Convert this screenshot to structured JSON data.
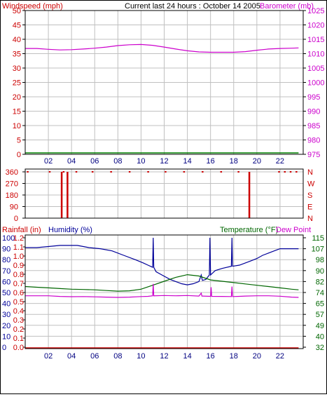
{
  "header": {
    "left_label": "Windspeed (mph)",
    "center_label": "Current last 24 hours : October 14 2005",
    "right_label": "Barometer (mb)"
  },
  "colors": {
    "windspeed": "#cc0000",
    "barometer": "#cc00cc",
    "wind_line": "#008000",
    "direction": "#cc0000",
    "rainfall": "#cc0000",
    "humidity": "#000099",
    "temperature": "#006600",
    "dewpoint": "#cc00cc",
    "grid": "#c0c0c0",
    "black_tick": "#000000"
  },
  "chart_data": [
    {
      "type": "line",
      "x_ticks": [
        "02",
        "04",
        "06",
        "08",
        "10",
        "12",
        "14",
        "16",
        "18",
        "20",
        "22"
      ],
      "xlim": [
        0,
        24
      ],
      "left_axis": {
        "label": "Windspeed (mph)",
        "ticks": [
          0,
          5,
          10,
          15,
          20,
          25,
          30,
          35,
          40,
          45,
          50
        ],
        "ylim": [
          0,
          50
        ]
      },
      "right_axis": {
        "label": "Barometer (mb)",
        "ticks": [
          975,
          980,
          985,
          990,
          995,
          1000,
          1005,
          1010,
          1015,
          1020,
          1025
        ],
        "ylim": [
          975,
          1025
        ]
      },
      "series": [
        {
          "axis": "right",
          "x": [
            0,
            1,
            2,
            3,
            4,
            5,
            6,
            7,
            8,
            9,
            10,
            11,
            12,
            13,
            14,
            15,
            16,
            17,
            18,
            19,
            20,
            21,
            22,
            23,
            23.6
          ],
          "values": [
            1011.8,
            1011.8,
            1011.5,
            1011.3,
            1011.4,
            1011.6,
            1011.9,
            1012.3,
            1012.8,
            1013.1,
            1013.2,
            1012.9,
            1012.3,
            1011.6,
            1011.0,
            1010.6,
            1010.5,
            1010.5,
            1010.5,
            1010.7,
            1011.2,
            1011.6,
            1011.8,
            1011.9,
            1012.0
          ]
        },
        {
          "axis": "left",
          "x": [
            0,
            23.6
          ],
          "values": [
            0,
            0
          ]
        }
      ]
    },
    {
      "type": "bar",
      "x_ticks": [],
      "xlim": [
        0,
        24
      ],
      "left_axis": {
        "ticks": [
          0,
          90,
          180,
          270,
          360
        ],
        "ylim": [
          0,
          360
        ]
      },
      "right_axis": {
        "ticks": [
          "N",
          "E",
          "S",
          "W",
          "N"
        ]
      },
      "bars_x": [
        3.15,
        3.65,
        19.35
      ],
      "bars_value": [
        360,
        360,
        360
      ],
      "top_marks_x": [
        0.2,
        2.1,
        3.3,
        4.4,
        5.8,
        7.4,
        9.0,
        10.6,
        12.1,
        13.7,
        15.3,
        16.9,
        18.4,
        21.9,
        22.4,
        22.9,
        23.4
      ]
    },
    {
      "type": "line",
      "x_ticks": [
        "02",
        "04",
        "06",
        "08",
        "10",
        "12",
        "14",
        "16",
        "18",
        "20",
        "22"
      ],
      "xlim": [
        0,
        24
      ],
      "header_labels": {
        "rainfall": "Rainfall (in)",
        "humidity": "Humidity (%)",
        "temperature": "Temperature (°F)",
        "dewpoint": "Dew Point"
      },
      "rainfall_axis": {
        "ticks": [
          "0.0",
          "0.1",
          "0.2",
          "0.3",
          "0.4",
          "0.5",
          "0.6",
          "0.7",
          "0.8",
          "0.9",
          "1.0",
          "1.1",
          "1.2"
        ],
        "ylim": [
          0,
          1.2
        ]
      },
      "humidity_axis": {
        "ticks": [
          0,
          10,
          20,
          30,
          40,
          50,
          60,
          70,
          80,
          90,
          100
        ],
        "ylim": [
          0,
          100
        ]
      },
      "temperature_axis": {
        "ticks": [
          32,
          40,
          49,
          57,
          65,
          74,
          82,
          90,
          98,
          107,
          115
        ],
        "ylim": [
          32,
          115
        ]
      },
      "series": [
        {
          "name": "Humidity (%)",
          "axis": "humidity",
          "x": [
            0,
            1,
            2,
            3,
            3.8,
            4.5,
            5.5,
            6.5,
            7.5,
            8.5,
            9.5,
            10.2,
            10.6,
            11.0,
            11.05,
            11.1,
            11.3,
            11.8,
            12.5,
            13.0,
            13.5,
            14.0,
            14.5,
            15.0,
            15.2,
            15.25,
            15.3,
            15.6,
            15.9,
            15.95,
            16.0,
            16.4,
            17.0,
            17.8,
            17.85,
            17.9,
            18.5,
            19.0,
            19.5,
            20.0,
            20.5,
            21.0,
            21.5,
            22.0,
            22.5,
            23.0,
            23.6
          ],
          "values": [
            91,
            91,
            92,
            93,
            93,
            93,
            91,
            90,
            88,
            84,
            80,
            77,
            75,
            73,
            100,
            73,
            69,
            66,
            62,
            60,
            58,
            57,
            58,
            60,
            66,
            63,
            61,
            62,
            66,
            100,
            66,
            70,
            72,
            74,
            100,
            74,
            75,
            77,
            79,
            81,
            84,
            86,
            88,
            90,
            90,
            90,
            90
          ]
        },
        {
          "name": "Temperature (°F)",
          "axis": "temperature",
          "x": [
            0,
            1,
            2,
            3,
            4,
            5,
            6,
            7,
            8,
            9,
            10,
            11,
            12,
            13,
            14,
            15,
            16,
            17,
            18,
            19,
            20,
            21,
            22,
            23,
            23.6
          ],
          "values": [
            78,
            77.5,
            77,
            76.5,
            76,
            75.8,
            75.5,
            75,
            74.5,
            74.8,
            76,
            79,
            82,
            85,
            87,
            86,
            83,
            82,
            81,
            80,
            79,
            78,
            77,
            76,
            75.5
          ]
        },
        {
          "name": "Dew Point",
          "axis": "temperature",
          "x": [
            0,
            1,
            2,
            3,
            4,
            5,
            6,
            7,
            8,
            9,
            10,
            10.6,
            11.0,
            11.05,
            11.1,
            12,
            13,
            14,
            15,
            15.2,
            15.25,
            15.3,
            16,
            16.05,
            16.1,
            17,
            17.8,
            17.85,
            17.9,
            18.5,
            19,
            20,
            21,
            22,
            23,
            23.6
          ],
          "values": [
            71,
            71,
            71,
            70.5,
            70.3,
            70.4,
            70.2,
            70,
            69.8,
            70,
            70.4,
            70.6,
            71,
            80,
            71,
            71.2,
            71,
            71.2,
            70.8,
            73,
            70.8,
            70.8,
            70.6,
            77.5,
            70.6,
            70.5,
            70.4,
            78,
            70.4,
            70.6,
            70.8,
            71,
            71,
            70.7,
            70,
            69.8
          ]
        },
        {
          "name": "Rainfall (in)",
          "axis": "rainfall",
          "x": [
            0,
            23.6
          ],
          "values": [
            0,
            0
          ]
        }
      ]
    }
  ]
}
